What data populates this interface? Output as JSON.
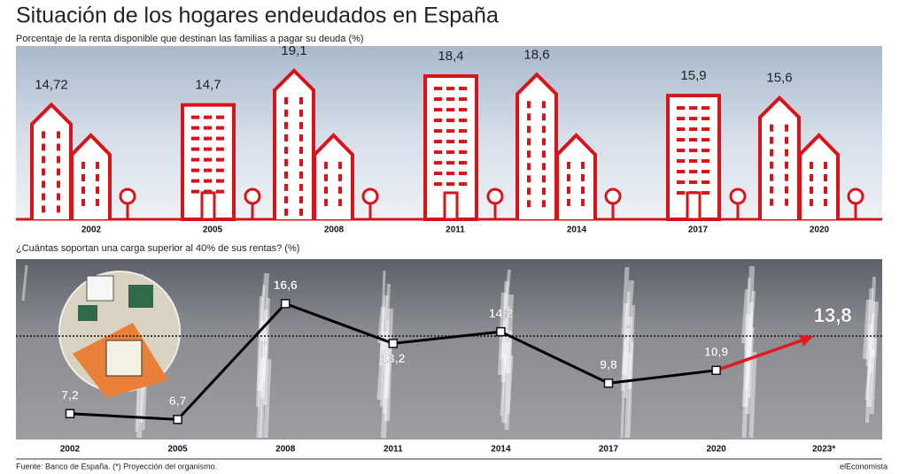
{
  "title": "Situación de los hogares endeudados en España",
  "source": "Fuente: Banco de España. (*) Proyección del organismo.",
  "brand": "elEconomista",
  "chart_data": [
    {
      "type": "bar",
      "subtitle": "Porcentaje de la renta disponible que destinan las familias a pagar su deuda (%)",
      "categories": [
        "2002",
        "2005",
        "2008",
        "2011",
        "2014",
        "2017",
        "2020"
      ],
      "values": [
        14.72,
        14.7,
        19.1,
        18.4,
        18.6,
        15.9,
        15.6
      ],
      "value_labels": [
        "14,72",
        "14,7",
        "19,1",
        "18,4",
        "18,6",
        "15,9",
        "15,6"
      ],
      "color": "#d7141a"
    },
    {
      "type": "line",
      "subtitle": "¿Cuántas soportan una carga superior al 40% de sus rentas? (%)",
      "categories": [
        "2002",
        "2005",
        "2008",
        "2011",
        "2014",
        "2017",
        "2020",
        "2023*"
      ],
      "values": [
        7.2,
        6.7,
        16.6,
        13.2,
        14.2,
        9.8,
        10.9,
        13.8
      ],
      "value_labels": [
        "7,2",
        "6,7",
        "16,6",
        "13,2",
        "14,2",
        "9,8",
        "10,9",
        "13,8"
      ],
      "color": "#000000",
      "projection_color": "#e0191f"
    }
  ]
}
